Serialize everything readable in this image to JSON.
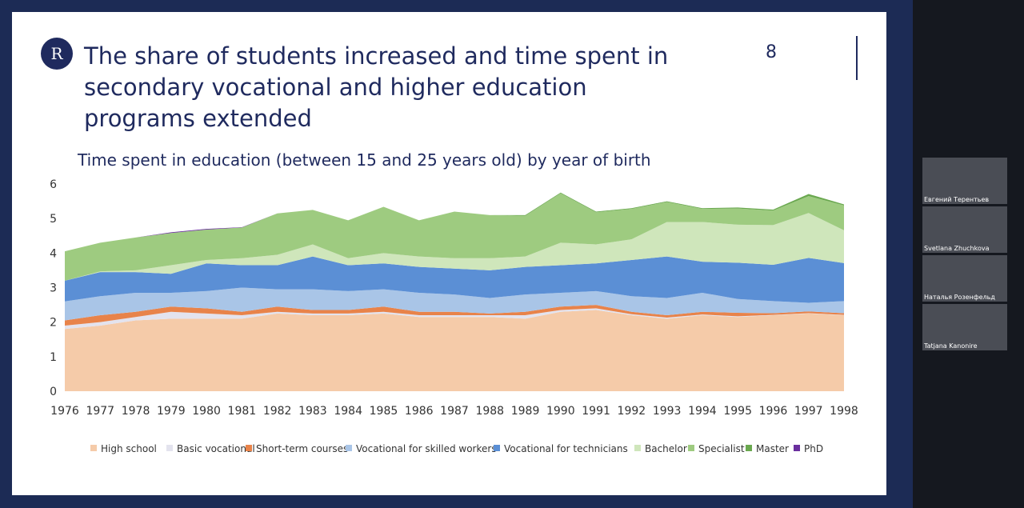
{
  "slide": {
    "title": "The share of students increased and time spent in secondary vocational and higher education programs extended",
    "page_number": "8"
  },
  "participants": [
    "Евгений Терентьев",
    "Svetlana Zhuchkova",
    "Наталья Розенфельд",
    "Tatjana Kanonire"
  ],
  "chart_data": {
    "type": "stacked_area",
    "title": "Time spent in education (between 15 and 25 years old) by year of birth",
    "categories": [
      "1976",
      "1977",
      "1978",
      "1979",
      "1980",
      "1981",
      "1982",
      "1983",
      "1984",
      "1985",
      "1986",
      "1987",
      "1988",
      "1989",
      "1990",
      "1991",
      "1992",
      "1993",
      "1994",
      "1995",
      "1996",
      "1997",
      "1998"
    ],
    "ylim": [
      0,
      6
    ],
    "yticks": [
      0,
      1,
      2,
      3,
      4,
      5,
      6
    ],
    "legend": "bottom",
    "series": [
      {
        "name": "High school",
        "color": "#f5cba9",
        "values": [
          1.8,
          1.9,
          2.05,
          2.1,
          2.1,
          2.1,
          2.25,
          2.2,
          2.2,
          2.25,
          2.15,
          2.15,
          2.15,
          2.1,
          2.3,
          2.35,
          2.2,
          2.1,
          2.2,
          2.15,
          2.2,
          2.25,
          2.2
        ]
      },
      {
        "name": "Basic vocational",
        "color": "#e3e3ee",
        "values": [
          0.1,
          0.1,
          0.1,
          0.2,
          0.15,
          0.1,
          0.05,
          0.05,
          0.05,
          0.05,
          0.05,
          0.05,
          0.05,
          0.1,
          0.05,
          0.05,
          0.03,
          0.03,
          0.02,
          0.02,
          0.01,
          0.01,
          0.01
        ]
      },
      {
        "name": "Short-term courses",
        "color": "#e8834a",
        "values": [
          0.15,
          0.2,
          0.15,
          0.15,
          0.15,
          0.1,
          0.15,
          0.1,
          0.1,
          0.15,
          0.1,
          0.1,
          0.05,
          0.1,
          0.1,
          0.1,
          0.07,
          0.07,
          0.08,
          0.1,
          0.05,
          0.05,
          0.05
        ]
      },
      {
        "name": "Vocational for skilled workers",
        "color": "#a9c5e7",
        "values": [
          0.55,
          0.55,
          0.55,
          0.4,
          0.5,
          0.7,
          0.5,
          0.6,
          0.55,
          0.5,
          0.55,
          0.5,
          0.45,
          0.5,
          0.4,
          0.4,
          0.45,
          0.5,
          0.55,
          0.4,
          0.35,
          0.25,
          0.35
        ]
      },
      {
        "name": "Vocational for technicians",
        "color": "#5b8fd5",
        "values": [
          0.6,
          0.7,
          0.6,
          0.55,
          0.8,
          0.65,
          0.7,
          0.95,
          0.75,
          0.75,
          0.75,
          0.75,
          0.8,
          0.8,
          0.8,
          0.8,
          1.05,
          1.2,
          0.9,
          1.05,
          1.05,
          1.3,
          1.1
        ]
      },
      {
        "name": "Bachelor",
        "color": "#cfe6bb",
        "values": [
          0,
          0.02,
          0.05,
          0.25,
          0.1,
          0.2,
          0.3,
          0.35,
          0.2,
          0.3,
          0.3,
          0.3,
          0.35,
          0.3,
          0.65,
          0.55,
          0.6,
          1.0,
          1.15,
          1.1,
          1.15,
          1.3,
          0.95
        ]
      },
      {
        "name": "Specialist",
        "color": "#9ecb80",
        "values": [
          0.85,
          0.83,
          0.95,
          0.93,
          0.88,
          0.89,
          1.2,
          1.0,
          1.1,
          1.34,
          1.05,
          1.35,
          1.25,
          1.18,
          1.43,
          0.93,
          0.88,
          0.58,
          0.38,
          0.47,
          0.42,
          0.49,
          0.72
        ]
      },
      {
        "name": "Master",
        "color": "#6aa84f",
        "values": [
          0,
          0,
          0,
          0,
          0,
          0,
          0,
          0,
          0,
          0,
          0,
          0,
          0,
          0.02,
          0.02,
          0.02,
          0.02,
          0.02,
          0.02,
          0.03,
          0.03,
          0.06,
          0.03
        ]
      },
      {
        "name": "PhD",
        "color": "#6a2f9e",
        "values": [
          0,
          0,
          0,
          0.02,
          0.02,
          0.01,
          0,
          0,
          0,
          0,
          0,
          0,
          0,
          0,
          0,
          0,
          0,
          0,
          0,
          0,
          0,
          0,
          0
        ]
      }
    ]
  }
}
